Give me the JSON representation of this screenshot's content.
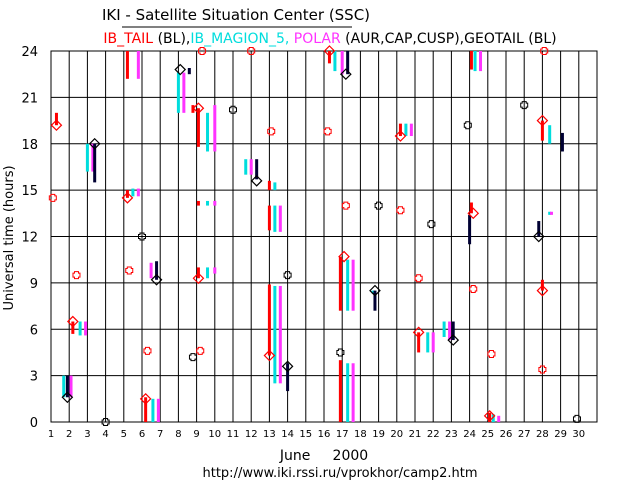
{
  "chart_data": {
    "type": "scatter",
    "title": "IKI - Satellite Situation Center (SSC)",
    "subtitle_parts": [
      {
        "text": "IB_TAIL",
        "color": "#ff0000"
      },
      {
        "text": " (BL),",
        "color": "#000000"
      },
      {
        "text": "IB_MAGION_5,",
        "color": "#00dddd"
      },
      {
        "text": " POLAR",
        "color": "#ff33ff"
      },
      {
        "text": " (AUR,CAP,CUSP),",
        "color": "#000000"
      },
      {
        "text": "GEOTAIL",
        "color": "#000000"
      },
      {
        "text": " (BL)",
        "color": "#000000"
      }
    ],
    "xlabel": "June     2000",
    "ylabel": "Universal time (hours)",
    "footer": "http://www.iki.rssi.ru/vprokhor/camp2.htm",
    "xlim": [
      1,
      31
    ],
    "ylim": [
      0,
      24
    ],
    "x_ticks": [
      1,
      2,
      3,
      4,
      5,
      6,
      7,
      8,
      9,
      10,
      11,
      12,
      13,
      14,
      15,
      16,
      17,
      18,
      19,
      20,
      21,
      22,
      23,
      24,
      25,
      26,
      27,
      28,
      29,
      30
    ],
    "y_ticks": [
      0,
      3,
      6,
      9,
      12,
      15,
      18,
      21,
      24
    ],
    "grid": true,
    "colors": {
      "IB_TAIL": "#ff0000",
      "IB_MAGION_5": "#00dddd",
      "POLAR": "#ff33ff",
      "GEOTAIL": "#000033"
    },
    "series": [
      {
        "name": "IB_TAIL",
        "color": "#ff0000",
        "intervals": [
          [
            1.3,
            19.2,
            20.0
          ],
          [
            2.2,
            5.7,
            6.5
          ],
          [
            5.2,
            22.2,
            24.0
          ],
          [
            5.2,
            14.5,
            15.0
          ],
          [
            6.2,
            0.0,
            1.6
          ],
          [
            8.8,
            20.0,
            20.5
          ],
          [
            9.1,
            17.8,
            20.3
          ],
          [
            9.1,
            14.0,
            14.3
          ],
          [
            9.1,
            9.3,
            10.0
          ],
          [
            13.0,
            15.0,
            15.6
          ],
          [
            13.0,
            12.4,
            14.0
          ],
          [
            13.0,
            4.3,
            8.9
          ],
          [
            16.3,
            23.2,
            24.0
          ],
          [
            16.9,
            7.2,
            10.7
          ],
          [
            16.9,
            0.0,
            4.0
          ],
          [
            20.2,
            18.5,
            19.3
          ],
          [
            21.2,
            4.5,
            5.8
          ],
          [
            24.1,
            22.8,
            24.0
          ],
          [
            24.1,
            13.5,
            14.2
          ],
          [
            25.1,
            0.0,
            0.6
          ],
          [
            28.0,
            18.2,
            19.5
          ],
          [
            28.0,
            8.5,
            9.2
          ]
        ]
      },
      {
        "name": "IB_MAGION_5",
        "color": "#00dddd",
        "intervals": [
          [
            1.7,
            1.6,
            3.0
          ],
          [
            2.6,
            5.6,
            6.5
          ],
          [
            3.0,
            16.2,
            18.0
          ],
          [
            5.5,
            14.6,
            15.1
          ],
          [
            6.6,
            0.0,
            1.5
          ],
          [
            8.0,
            20.0,
            22.6
          ],
          [
            9.6,
            17.5,
            20.0
          ],
          [
            9.6,
            14.0,
            14.3
          ],
          [
            9.6,
            9.3,
            10.0
          ],
          [
            11.7,
            16.0,
            17.0
          ],
          [
            13.3,
            15.0,
            15.5
          ],
          [
            13.3,
            12.3,
            14.0
          ],
          [
            13.3,
            2.5,
            8.8
          ],
          [
            16.6,
            22.7,
            24.0
          ],
          [
            17.3,
            7.2,
            10.5
          ],
          [
            17.3,
            0.0,
            3.8
          ],
          [
            18.7,
            8.3,
            8.5
          ],
          [
            20.5,
            18.5,
            19.3
          ],
          [
            21.7,
            4.5,
            5.8
          ],
          [
            22.6,
            5.5,
            6.5
          ],
          [
            24.3,
            22.7,
            24.0
          ],
          [
            25.3,
            0.0,
            0.5
          ],
          [
            28.4,
            18.0,
            19.2
          ],
          [
            28.4,
            13.4,
            13.6
          ]
        ]
      },
      {
        "name": "POLAR",
        "color": "#ff33ff",
        "intervals": [
          [
            2.1,
            1.6,
            3.0
          ],
          [
            2.9,
            5.6,
            6.5
          ],
          [
            3.3,
            16.2,
            18.0
          ],
          [
            5.8,
            22.2,
            24.0
          ],
          [
            5.8,
            14.6,
            15.1
          ],
          [
            6.5,
            9.3,
            10.3
          ],
          [
            6.9,
            0.0,
            1.5
          ],
          [
            8.3,
            20.0,
            22.6
          ],
          [
            10.0,
            17.5,
            20.5
          ],
          [
            10.0,
            14.0,
            14.3
          ],
          [
            10.0,
            9.6,
            10.0
          ],
          [
            12.0,
            16.0,
            17.0
          ],
          [
            13.6,
            12.3,
            14.0
          ],
          [
            13.6,
            2.5,
            8.8
          ],
          [
            17.0,
            22.5,
            24.0
          ],
          [
            17.6,
            7.2,
            10.5
          ],
          [
            17.6,
            0.0,
            3.8
          ],
          [
            20.8,
            18.5,
            19.3
          ],
          [
            22.0,
            4.5,
            5.8
          ],
          [
            22.9,
            5.3,
            6.5
          ],
          [
            24.6,
            22.7,
            24.0
          ],
          [
            25.6,
            0.0,
            0.4
          ],
          [
            28.5,
            13.4,
            13.6
          ]
        ]
      },
      {
        "name": "GEOTAIL",
        "color": "#000033",
        "intervals": [
          [
            1.9,
            1.6,
            3.0
          ],
          [
            3.4,
            15.5,
            18.0
          ],
          [
            6.8,
            9.2,
            10.4
          ],
          [
            8.6,
            22.5,
            22.9
          ],
          [
            12.3,
            15.7,
            17.0
          ],
          [
            14.0,
            2.0,
            3.8
          ],
          [
            17.3,
            22.5,
            24.0
          ],
          [
            18.8,
            7.2,
            8.5
          ],
          [
            23.1,
            5.3,
            6.5
          ],
          [
            24.0,
            11.5,
            13.4
          ],
          [
            27.8,
            12.0,
            13.0
          ],
          [
            29.1,
            17.5,
            18.7
          ]
        ]
      }
    ],
    "markers": [
      {
        "kind": "diamond",
        "color": "#ff0000",
        "x": 1.3,
        "y": 19.2
      },
      {
        "kind": "diamond",
        "color": "#000000",
        "x": 1.9,
        "y": 1.6
      },
      {
        "kind": "diamond",
        "color": "#ff0000",
        "x": 2.2,
        "y": 6.5
      },
      {
        "kind": "diamond",
        "color": "#000000",
        "x": 3.4,
        "y": 18.0
      },
      {
        "kind": "diamond",
        "color": "#ff0000",
        "x": 5.2,
        "y": 14.5
      },
      {
        "kind": "diamond",
        "color": "#ff0000",
        "x": 6.2,
        "y": 1.5
      },
      {
        "kind": "diamond",
        "color": "#000000",
        "x": 6.8,
        "y": 9.2
      },
      {
        "kind": "diamond",
        "color": "#000000",
        "x": 8.1,
        "y": 22.8
      },
      {
        "kind": "diamond",
        "color": "#ff0000",
        "x": 9.1,
        "y": 20.3
      },
      {
        "kind": "diamond",
        "color": "#ff0000",
        "x": 9.1,
        "y": 9.3
      },
      {
        "kind": "diamond",
        "color": "#000000",
        "x": 12.3,
        "y": 15.6
      },
      {
        "kind": "diamond",
        "color": "#ff0000",
        "x": 13.0,
        "y": 4.3
      },
      {
        "kind": "diamond",
        "color": "#000000",
        "x": 14.0,
        "y": 3.6
      },
      {
        "kind": "diamond",
        "color": "#ff0000",
        "x": 16.3,
        "y": 24.0
      },
      {
        "kind": "diamond",
        "color": "#000000",
        "x": 17.2,
        "y": 22.5
      },
      {
        "kind": "diamond",
        "color": "#ff0000",
        "x": 17.1,
        "y": 10.7
      },
      {
        "kind": "diamond",
        "color": "#000000",
        "x": 18.8,
        "y": 8.5
      },
      {
        "kind": "diamond",
        "color": "#ff0000",
        "x": 20.2,
        "y": 18.5
      },
      {
        "kind": "diamond",
        "color": "#ff0000",
        "x": 21.2,
        "y": 5.8
      },
      {
        "kind": "diamond",
        "color": "#000000",
        "x": 23.1,
        "y": 5.3
      },
      {
        "kind": "diamond",
        "color": "#ff0000",
        "x": 24.2,
        "y": 13.5
      },
      {
        "kind": "diamond",
        "color": "#ff0000",
        "x": 25.1,
        "y": 0.4
      },
      {
        "kind": "diamond",
        "color": "#000000",
        "x": 27.8,
        "y": 12.0
      },
      {
        "kind": "diamond",
        "color": "#ff0000",
        "x": 28.0,
        "y": 19.5
      },
      {
        "kind": "diamond",
        "color": "#ff0000",
        "x": 28.0,
        "y": 8.5
      },
      {
        "kind": "plus",
        "color": "#ff0000",
        "x": 1.1,
        "y": 14.5
      },
      {
        "kind": "plus",
        "color": "#ff0000",
        "x": 2.4,
        "y": 9.5
      },
      {
        "kind": "plus",
        "color": "#000000",
        "x": 4.0,
        "y": 0.0
      },
      {
        "kind": "plus",
        "color": "#ff0000",
        "x": 5.3,
        "y": 9.8
      },
      {
        "kind": "plus",
        "color": "#ff0000",
        "x": 6.3,
        "y": 4.6
      },
      {
        "kind": "plus",
        "color": "#000000",
        "x": 6.0,
        "y": 12.0
      },
      {
        "kind": "plus",
        "color": "#000000",
        "x": 8.8,
        "y": 4.2
      },
      {
        "kind": "plus",
        "color": "#ff0000",
        "x": 9.3,
        "y": 24.0
      },
      {
        "kind": "plus",
        "color": "#ff0000",
        "x": 9.2,
        "y": 4.6
      },
      {
        "kind": "plus",
        "color": "#000000",
        "x": 11.0,
        "y": 20.2
      },
      {
        "kind": "plus",
        "color": "#ff0000",
        "x": 12.0,
        "y": 24.0
      },
      {
        "kind": "plus",
        "color": "#ff0000",
        "x": 13.1,
        "y": 18.8
      },
      {
        "kind": "plus",
        "color": "#000000",
        "x": 14.0,
        "y": 9.5
      },
      {
        "kind": "plus",
        "color": "#ff0000",
        "x": 16.2,
        "y": 18.8
      },
      {
        "kind": "plus",
        "color": "#000000",
        "x": 16.9,
        "y": 4.5
      },
      {
        "kind": "plus",
        "color": "#ff0000",
        "x": 17.2,
        "y": 14.0
      },
      {
        "kind": "plus",
        "color": "#000000",
        "x": 19.0,
        "y": 14.0
      },
      {
        "kind": "plus",
        "color": "#ff0000",
        "x": 20.2,
        "y": 13.7
      },
      {
        "kind": "plus",
        "color": "#ff0000",
        "x": 21.2,
        "y": 9.3
      },
      {
        "kind": "plus",
        "color": "#000000",
        "x": 21.9,
        "y": 12.8
      },
      {
        "kind": "plus",
        "color": "#000000",
        "x": 23.9,
        "y": 19.2
      },
      {
        "kind": "plus",
        "color": "#ff0000",
        "x": 24.2,
        "y": 8.6
      },
      {
        "kind": "plus",
        "color": "#ff0000",
        "x": 25.2,
        "y": 4.4
      },
      {
        "kind": "plus",
        "color": "#000000",
        "x": 27.0,
        "y": 20.5
      },
      {
        "kind": "plus",
        "color": "#ff0000",
        "x": 28.1,
        "y": 24.0
      },
      {
        "kind": "plus",
        "color": "#ff0000",
        "x": 28.0,
        "y": 3.4
      },
      {
        "kind": "plus",
        "color": "#000000",
        "x": 29.9,
        "y": 0.2
      }
    ]
  }
}
